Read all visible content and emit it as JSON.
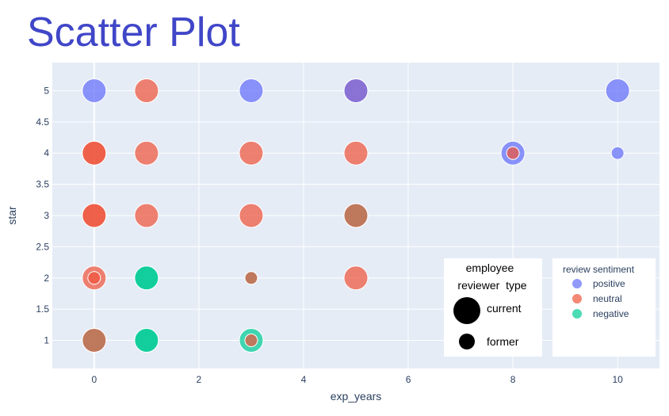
{
  "chart_data": {
    "type": "scatter",
    "title": "Scatter Plot",
    "xlabel": "exp_years",
    "ylabel": "star",
    "xlim": [
      -0.8,
      10.8
    ],
    "ylim": [
      0.55,
      5.45
    ],
    "xticks": [
      0,
      2,
      4,
      6,
      8,
      10
    ],
    "yticks": [
      1,
      1.5,
      2,
      2.5,
      3,
      3.5,
      4,
      4.5,
      5
    ],
    "grid": true,
    "background": "#e5ecf6",
    "colors": {
      "positive": "#636efa",
      "neutral": "#ef553b",
      "negative": "#00cc96"
    },
    "size_legend": {
      "title_line1": "employee",
      "title_line2": "reviewer  type",
      "items": [
        "current",
        "former"
      ]
    },
    "color_legend": {
      "title": "review sentiment",
      "items": [
        "positive",
        "neutral",
        "negative"
      ]
    },
    "points": [
      {
        "x": 0,
        "y": 5,
        "sentiment": "positive",
        "type": "current"
      },
      {
        "x": 1,
        "y": 5,
        "sentiment": "neutral",
        "type": "current"
      },
      {
        "x": 3,
        "y": 5,
        "sentiment": "positive",
        "type": "current"
      },
      {
        "x": 5,
        "y": 5,
        "sentiment": "neutral",
        "type": "current"
      },
      {
        "x": 5,
        "y": 5,
        "sentiment": "positive",
        "type": "current"
      },
      {
        "x": 10,
        "y": 5,
        "sentiment": "positive",
        "type": "current"
      },
      {
        "x": 0,
        "y": 4,
        "sentiment": "neutral",
        "type": "current"
      },
      {
        "x": 0,
        "y": 4,
        "sentiment": "neutral",
        "type": "current"
      },
      {
        "x": 1,
        "y": 4,
        "sentiment": "neutral",
        "type": "current"
      },
      {
        "x": 3,
        "y": 4,
        "sentiment": "neutral",
        "type": "current"
      },
      {
        "x": 5,
        "y": 4,
        "sentiment": "neutral",
        "type": "current"
      },
      {
        "x": 8,
        "y": 4,
        "sentiment": "positive",
        "type": "current"
      },
      {
        "x": 8,
        "y": 4,
        "sentiment": "neutral",
        "type": "former"
      },
      {
        "x": 10,
        "y": 4,
        "sentiment": "positive",
        "type": "former"
      },
      {
        "x": 0,
        "y": 3,
        "sentiment": "neutral",
        "type": "current"
      },
      {
        "x": 0,
        "y": 3,
        "sentiment": "neutral",
        "type": "current"
      },
      {
        "x": 1,
        "y": 3,
        "sentiment": "neutral",
        "type": "current"
      },
      {
        "x": 3,
        "y": 3,
        "sentiment": "neutral",
        "type": "current"
      },
      {
        "x": 5,
        "y": 3,
        "sentiment": "negative",
        "type": "current"
      },
      {
        "x": 5,
        "y": 3,
        "sentiment": "neutral",
        "type": "current"
      },
      {
        "x": 0,
        "y": 2,
        "sentiment": "neutral",
        "type": "current"
      },
      {
        "x": 0,
        "y": 2,
        "sentiment": "neutral",
        "type": "former"
      },
      {
        "x": 1,
        "y": 2,
        "sentiment": "negative",
        "type": "current"
      },
      {
        "x": 1,
        "y": 2,
        "sentiment": "negative",
        "type": "current"
      },
      {
        "x": 3,
        "y": 2,
        "sentiment": "negative",
        "type": "former"
      },
      {
        "x": 3,
        "y": 2,
        "sentiment": "neutral",
        "type": "former"
      },
      {
        "x": 5,
        "y": 2,
        "sentiment": "neutral",
        "type": "current"
      },
      {
        "x": 0,
        "y": 1,
        "sentiment": "negative",
        "type": "current"
      },
      {
        "x": 0,
        "y": 1,
        "sentiment": "neutral",
        "type": "current"
      },
      {
        "x": 1,
        "y": 1,
        "sentiment": "negative",
        "type": "current"
      },
      {
        "x": 1,
        "y": 1,
        "sentiment": "negative",
        "type": "current"
      },
      {
        "x": 3,
        "y": 1,
        "sentiment": "negative",
        "type": "current"
      },
      {
        "x": 3,
        "y": 1,
        "sentiment": "neutral",
        "type": "former"
      }
    ]
  }
}
